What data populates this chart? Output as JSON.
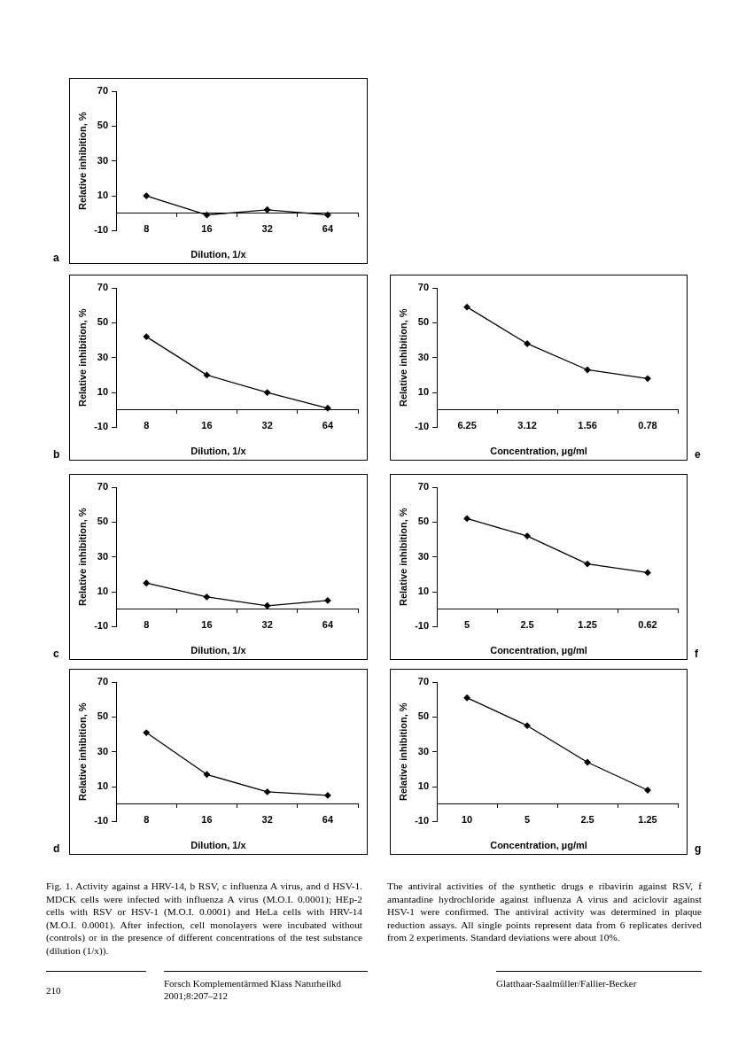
{
  "chart_data": [
    {
      "type": "line",
      "annotations": [
        "a"
      ],
      "xlabel": "Dilution, 1/x",
      "ylabel": "Relative inhibition, %",
      "categories": [
        "8",
        "16",
        "32",
        "64"
      ],
      "series": [
        {
          "color": "#000000",
          "values": [
            10,
            -1,
            2,
            -1
          ]
        }
      ],
      "ylim": [
        -10,
        70
      ],
      "yticks": [
        -10,
        10,
        30,
        50,
        70
      ],
      "marker": "diamond",
      "legend": false,
      "grid": false
    },
    {
      "type": "line",
      "annotations": [
        "b"
      ],
      "xlabel": "Dilution, 1/x",
      "ylabel": "Relative inhibition, %",
      "categories": [
        "8",
        "16",
        "32",
        "64"
      ],
      "series": [
        {
          "color": "#000000",
          "values": [
            42,
            20,
            10,
            1
          ]
        }
      ],
      "ylim": [
        -10,
        70
      ],
      "yticks": [
        -10,
        10,
        30,
        50,
        70
      ],
      "marker": "diamond",
      "legend": false,
      "grid": false
    },
    {
      "type": "line",
      "annotations": [
        "e"
      ],
      "xlabel": "Concentration, µg/ml",
      "ylabel": "Relative inhibition, %",
      "categories": [
        "6.25",
        "3.12",
        "1.56",
        "0.78"
      ],
      "series": [
        {
          "color": "#000000",
          "values": [
            59,
            38,
            23,
            18
          ]
        }
      ],
      "ylim": [
        -10,
        70
      ],
      "yticks": [
        -10,
        10,
        30,
        50,
        70
      ],
      "marker": "diamond",
      "legend": false,
      "grid": false
    },
    {
      "type": "line",
      "annotations": [
        "c"
      ],
      "xlabel": "Dilution, 1/x",
      "ylabel": "Relative inhibition, %",
      "categories": [
        "8",
        "16",
        "32",
        "64"
      ],
      "series": [
        {
          "color": "#000000",
          "values": [
            15,
            7,
            2,
            5
          ]
        }
      ],
      "ylim": [
        -10,
        70
      ],
      "yticks": [
        -10,
        10,
        30,
        50,
        70
      ],
      "marker": "diamond",
      "legend": false,
      "grid": false
    },
    {
      "type": "line",
      "annotations": [
        "f"
      ],
      "xlabel": "Concentration, µg/ml",
      "ylabel": "Relative inhibition, %",
      "categories": [
        "5",
        "2.5",
        "1.25",
        "0.62"
      ],
      "series": [
        {
          "color": "#000000",
          "values": [
            52,
            42,
            26,
            21
          ]
        }
      ],
      "ylim": [
        -10,
        70
      ],
      "yticks": [
        -10,
        10,
        30,
        50,
        70
      ],
      "marker": "diamond",
      "legend": false,
      "grid": false
    },
    {
      "type": "line",
      "annotations": [
        "d"
      ],
      "xlabel": "Dilution, 1/x",
      "ylabel": "Relative inhibition, %",
      "categories": [
        "8",
        "16",
        "32",
        "64"
      ],
      "series": [
        {
          "color": "#000000",
          "values": [
            41,
            17,
            7,
            5
          ]
        }
      ],
      "ylim": [
        -10,
        70
      ],
      "yticks": [
        -10,
        10,
        30,
        50,
        70
      ],
      "marker": "diamond",
      "legend": false,
      "grid": false
    },
    {
      "type": "line",
      "annotations": [
        "g"
      ],
      "xlabel": "Concentration, µg/ml",
      "ylabel": "Relative inhibition, %",
      "categories": [
        "10",
        "5",
        "2.5",
        "1.25"
      ],
      "series": [
        {
          "color": "#000000",
          "values": [
            61,
            45,
            24,
            8
          ]
        }
      ],
      "ylim": [
        -10,
        70
      ],
      "yticks": [
        -10,
        10,
        30,
        50,
        70
      ],
      "marker": "diamond",
      "legend": false,
      "grid": false
    },
    {
      "type": "other",
      "annotations": [
        "Fig. 1. Activity against a HRV-14, b RSV, c influenza A virus, and d HSV-1. MDCK cells were infected with influenza A virus (M.O.I. 0.0001); HEp-2 cells with RSV or HSV-1 (M.O.I. 0.0001) and HeLa cells with HRV-14 (M.O.I. 0.0001). After infection, cell monolayers were incubated without (controls) or in the presence of different concentrations of the test substance (dilution (1/x)).",
        "The antiviral activities of the synthetic drugs e ribavirin against RSV, f amantadine hydrochloride against influenza A virus and aciclovir against HSV-1 were confirmed. The antiviral activity was determined in plaque reduction assays. All single points represent data from 6 replicates derived from 2 experiments. Standard deviations were about 10%.",
        "210",
        "Forsch Komplementärmed Klass Naturheilkd",
        "2001;8:207–212",
        "Glatthaar-Saalmüller/Fallier-Becker"
      ]
    }
  ]
}
